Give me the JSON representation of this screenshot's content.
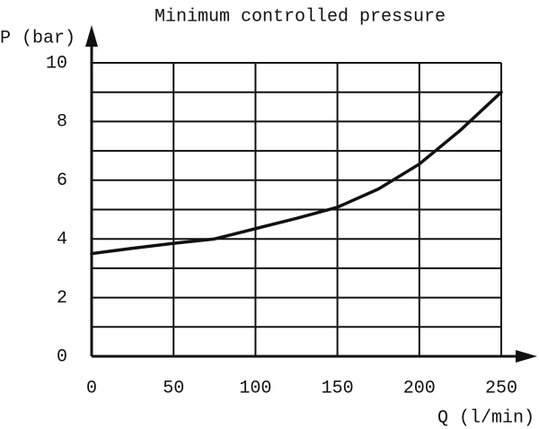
{
  "chart_data": {
    "type": "line",
    "title": "Minimum controlled pressure",
    "x_label": "Q (l/min)",
    "y_label": "P (bar)",
    "x": [
      0,
      25,
      50,
      75,
      100,
      125,
      150,
      175,
      200,
      225,
      250
    ],
    "values": [
      3.5,
      3.68,
      3.85,
      4.0,
      4.35,
      4.7,
      5.08,
      5.7,
      6.55,
      7.7,
      9.0
    ],
    "color": "#111111",
    "xlim": [
      0,
      250
    ],
    "xticks": [
      0,
      50,
      100,
      150,
      200,
      250
    ],
    "ylim": [
      0,
      10
    ],
    "yticks": [
      0,
      2,
      4,
      6,
      8,
      10
    ],
    "y_minor_ticks": [
      1,
      3,
      5,
      7,
      9
    ],
    "grid": true
  }
}
